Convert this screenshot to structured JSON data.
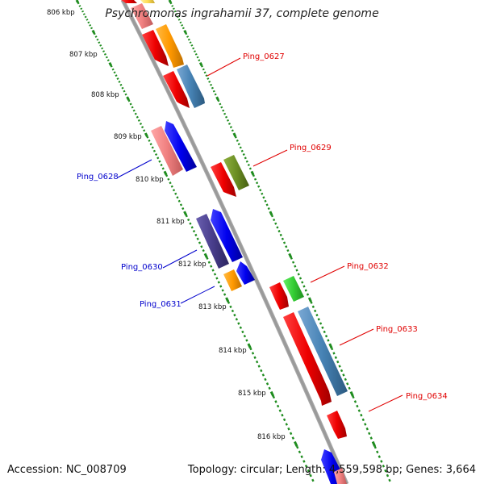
{
  "title": "Psychromonas ingrahamii 37, complete genome",
  "accession_label": "Accession: NC_008709",
  "summary_label": "Topology: circular; Length: 4,559,598 bp; Genes: 3,664",
  "ticks": [
    {
      "label": "806 kbp"
    },
    {
      "label": "807 kbp"
    },
    {
      "label": "808 kbp"
    },
    {
      "label": "809 kbp"
    },
    {
      "label": "810 kbp"
    },
    {
      "label": "811 kbp"
    },
    {
      "label": "812 kbp"
    },
    {
      "label": "813 kbp"
    },
    {
      "label": "814 kbp"
    },
    {
      "label": "815 kbp"
    },
    {
      "label": "816 kbp"
    }
  ],
  "gene_labels": [
    {
      "text": "Ping_0627",
      "color": "#e00000"
    },
    {
      "text": "Ping_0628",
      "color": "#0000cc"
    },
    {
      "text": "Ping_0629",
      "color": "#e00000"
    },
    {
      "text": "Ping_0630",
      "color": "#0000cc"
    },
    {
      "text": "Ping_0631",
      "color": "#0000cc"
    },
    {
      "text": "Ping_0632",
      "color": "#e00000"
    },
    {
      "text": "Ping_0633",
      "color": "#e00000"
    },
    {
      "text": "Ping_0634",
      "color": "#e00000"
    }
  ],
  "colors": {
    "backbone": "#8c8c8c",
    "dotted_track": "#1e8c1e",
    "red": "#ee0000",
    "blue": "#0000ee",
    "orange": "#ff9900",
    "steelblue": "#4682b4",
    "pink": "#f08080",
    "olive": "#6b8e23",
    "purple": "#483d8b",
    "green": "#33cc33",
    "yellow": "#ffdd55"
  }
}
